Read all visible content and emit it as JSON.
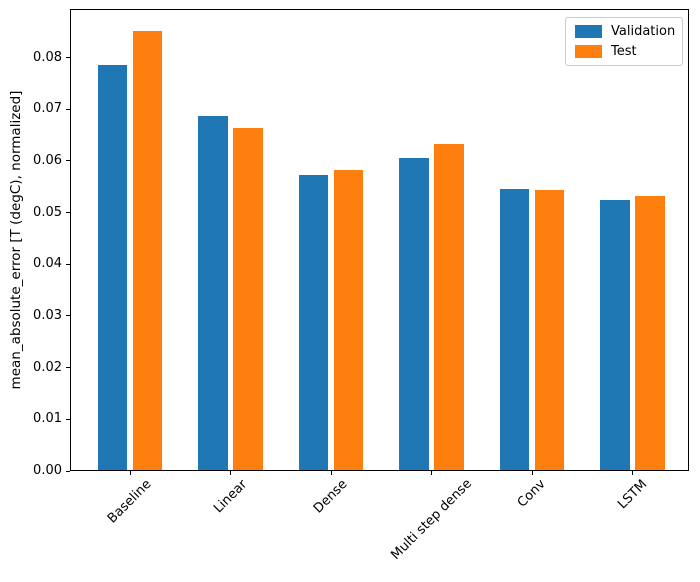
{
  "figure": {
    "background": "#ffffff",
    "text_color": "#000000",
    "axis_color": "#000000",
    "legend_border_color": "#cccccc"
  },
  "chart_data": {
    "type": "bar",
    "title": "",
    "xlabel": "",
    "ylabel": "mean_absolute_error [T (degC), normalized]",
    "categories": [
      "Baseline",
      "Linear",
      "Dense",
      "Multi step dense",
      "Conv",
      "LSTM"
    ],
    "series": [
      {
        "name": "Validation",
        "color": "#1f77b4",
        "values": [
          0.0785,
          0.0686,
          0.0572,
          0.0606,
          0.0545,
          0.0524
        ]
      },
      {
        "name": "Test",
        "color": "#ff7f0e",
        "values": [
          0.0852,
          0.0664,
          0.0583,
          0.0633,
          0.0543,
          0.0533
        ]
      }
    ],
    "ylim": [
      0,
      0.0894
    ],
    "yticks": [
      0.0,
      0.01,
      0.02,
      0.03,
      0.04,
      0.05,
      0.06,
      0.07,
      0.08
    ],
    "ytick_labels": [
      "0.00",
      "0.01",
      "0.02",
      "0.03",
      "0.04",
      "0.05",
      "0.06",
      "0.07",
      "0.08"
    ],
    "xtick_rotation_deg": 45,
    "grid": false,
    "legend": {
      "position": "upper right",
      "entries": [
        "Validation",
        "Test"
      ]
    }
  }
}
